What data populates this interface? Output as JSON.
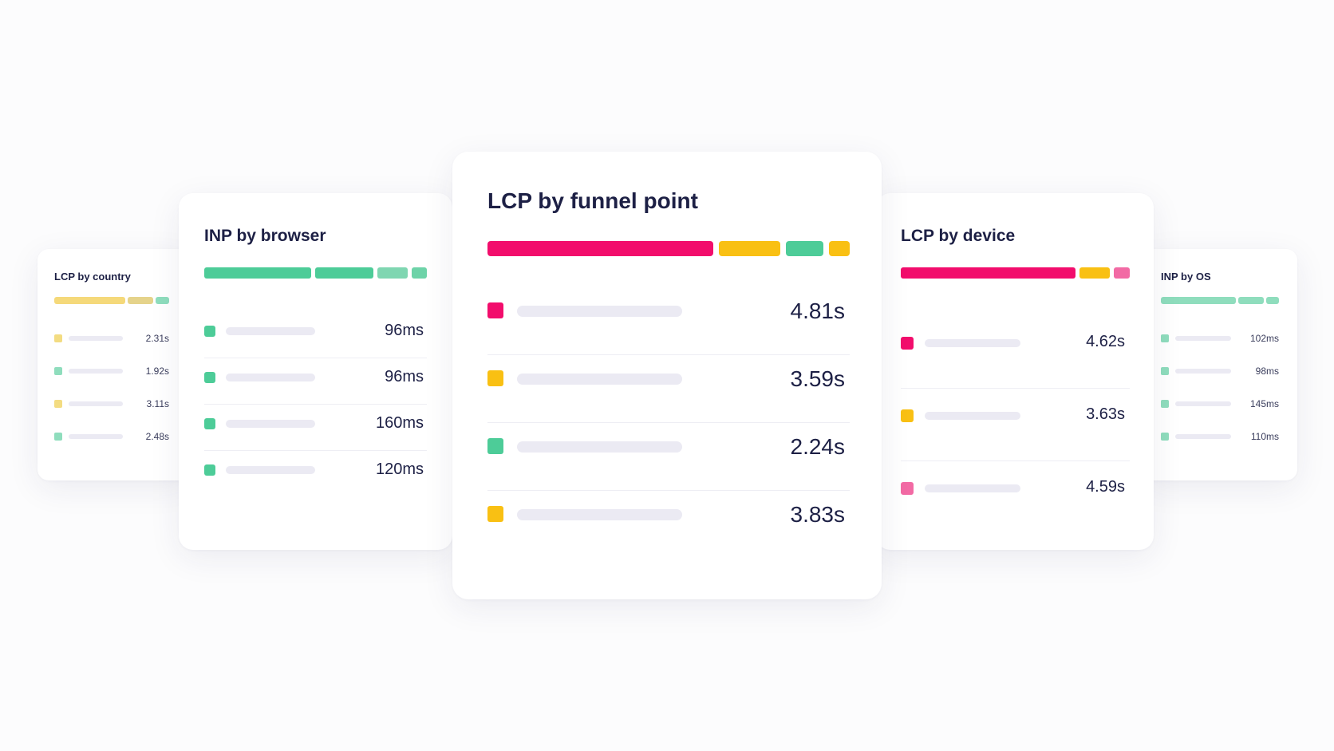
{
  "colors": {
    "pink": "#f20d6c",
    "yellow": "#f9c013",
    "green": "#4dcc98",
    "light_pink": "#f26aa4",
    "light_yellow": "#f3dc82",
    "light_green": "#8fddbd",
    "placeholder": "#ebeaf3"
  },
  "cards": {
    "country": {
      "title": "LCP by country",
      "bar": [
        {
          "color": "#f5d97a",
          "weight": 84
        },
        {
          "color": "#e5d38b",
          "weight": 30
        },
        {
          "color": "#8fddbd",
          "weight": 16
        }
      ],
      "rows": [
        {
          "color": "#f3dc82",
          "value": "2.31s"
        },
        {
          "color": "#8fddbd",
          "value": "1.92s"
        },
        {
          "color": "#f3dc82",
          "value": "3.11s"
        },
        {
          "color": "#8fddbd",
          "value": "2.48s"
        }
      ]
    },
    "browser": {
      "title": "INP by browser",
      "bar": [
        {
          "color": "#4dcc98",
          "weight": 132
        },
        {
          "color": "#4dcc98",
          "weight": 73
        },
        {
          "color": "#7fd6b1",
          "weight": 37
        },
        {
          "color": "#6dd3a8",
          "weight": 19
        }
      ],
      "rows": [
        {
          "color": "#4dcc98",
          "value": "96ms"
        },
        {
          "color": "#4dcc98",
          "value": "96ms"
        },
        {
          "color": "#4dcc98",
          "value": "160ms"
        },
        {
          "color": "#4dcc98",
          "value": "120ms"
        }
      ]
    },
    "funnel": {
      "title": "LCP by funnel point",
      "bar": [
        {
          "color": "#f20d6c",
          "weight": 283
        },
        {
          "color": "#f9c013",
          "weight": 77
        },
        {
          "color": "#4dcc98",
          "weight": 47
        },
        {
          "color": "#f9c013",
          "weight": 26
        }
      ],
      "rows": [
        {
          "color": "#f20d6c",
          "value": "4.81s"
        },
        {
          "color": "#f9c013",
          "value": "3.59s"
        },
        {
          "color": "#4dcc98",
          "value": "2.24s"
        },
        {
          "color": "#f9c013",
          "value": "3.83s"
        }
      ]
    },
    "device": {
      "title": "LCP by device",
      "bar": [
        {
          "color": "#f20d6c",
          "weight": 218
        },
        {
          "color": "#f9c013",
          "weight": 38
        },
        {
          "color": "#f26aa4",
          "weight": 20
        }
      ],
      "rows": [
        {
          "color": "#f20d6c",
          "value": "4.62s"
        },
        {
          "color": "#f9c013",
          "value": "3.63s"
        },
        {
          "color": "#f26aa4",
          "value": "4.59s"
        }
      ]
    },
    "os": {
      "title": "INP by OS",
      "bar": [
        {
          "color": "#8fddbd",
          "weight": 94
        },
        {
          "color": "#8fddbd",
          "weight": 32
        },
        {
          "color": "#8fddbd",
          "weight": 16
        }
      ],
      "rows": [
        {
          "color": "#8fddbd",
          "value": "102ms"
        },
        {
          "color": "#8fddbd",
          "value": "98ms"
        },
        {
          "color": "#8fddbd",
          "value": "145ms"
        },
        {
          "color": "#8fddbd",
          "value": "110ms"
        }
      ]
    }
  }
}
